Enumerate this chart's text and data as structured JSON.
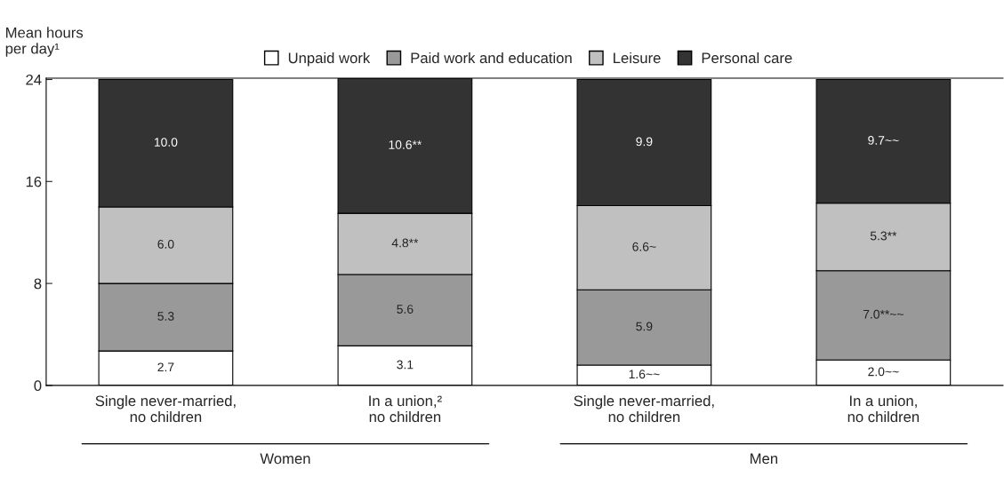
{
  "chart_data": {
    "type": "bar",
    "stacked": true,
    "ylabel": "Mean hours\nper day¹",
    "categories": [
      "Single never-married,\nno children",
      "In a union,²\nno children",
      "Single never-married,\nno children",
      "In a union,\nno children"
    ],
    "series": [
      {
        "name": "Unpaid work",
        "color": "#ffffff",
        "values": [
          2.7,
          3.1,
          1.6,
          2.0
        ],
        "value_labels": [
          "2.7",
          "3.1",
          "1.6~~",
          "2.0~~"
        ]
      },
      {
        "name": "Paid work and education",
        "color": "#999999",
        "values": [
          5.3,
          5.6,
          5.9,
          7.0
        ],
        "value_labels": [
          "5.3",
          "5.6",
          "5.9",
          "7.0**~~"
        ]
      },
      {
        "name": "Leisure",
        "color": "#c0c0c0",
        "values": [
          6.0,
          4.8,
          6.6,
          5.3
        ],
        "value_labels": [
          "6.0",
          "4.8**",
          "6.6~",
          "5.3**"
        ]
      },
      {
        "name": "Personal care",
        "color": "#333333",
        "values": [
          10.0,
          10.6,
          9.9,
          9.7
        ],
        "value_labels": [
          "10.0",
          "10.6**",
          "9.9",
          "9.7~~"
        ]
      }
    ],
    "ylim": [
      0,
      24.1
    ],
    "yticks": [
      0,
      8,
      16,
      24
    ],
    "annotations": [
      "Women",
      "Men"
    ],
    "legend": "top",
    "grid": false
  }
}
